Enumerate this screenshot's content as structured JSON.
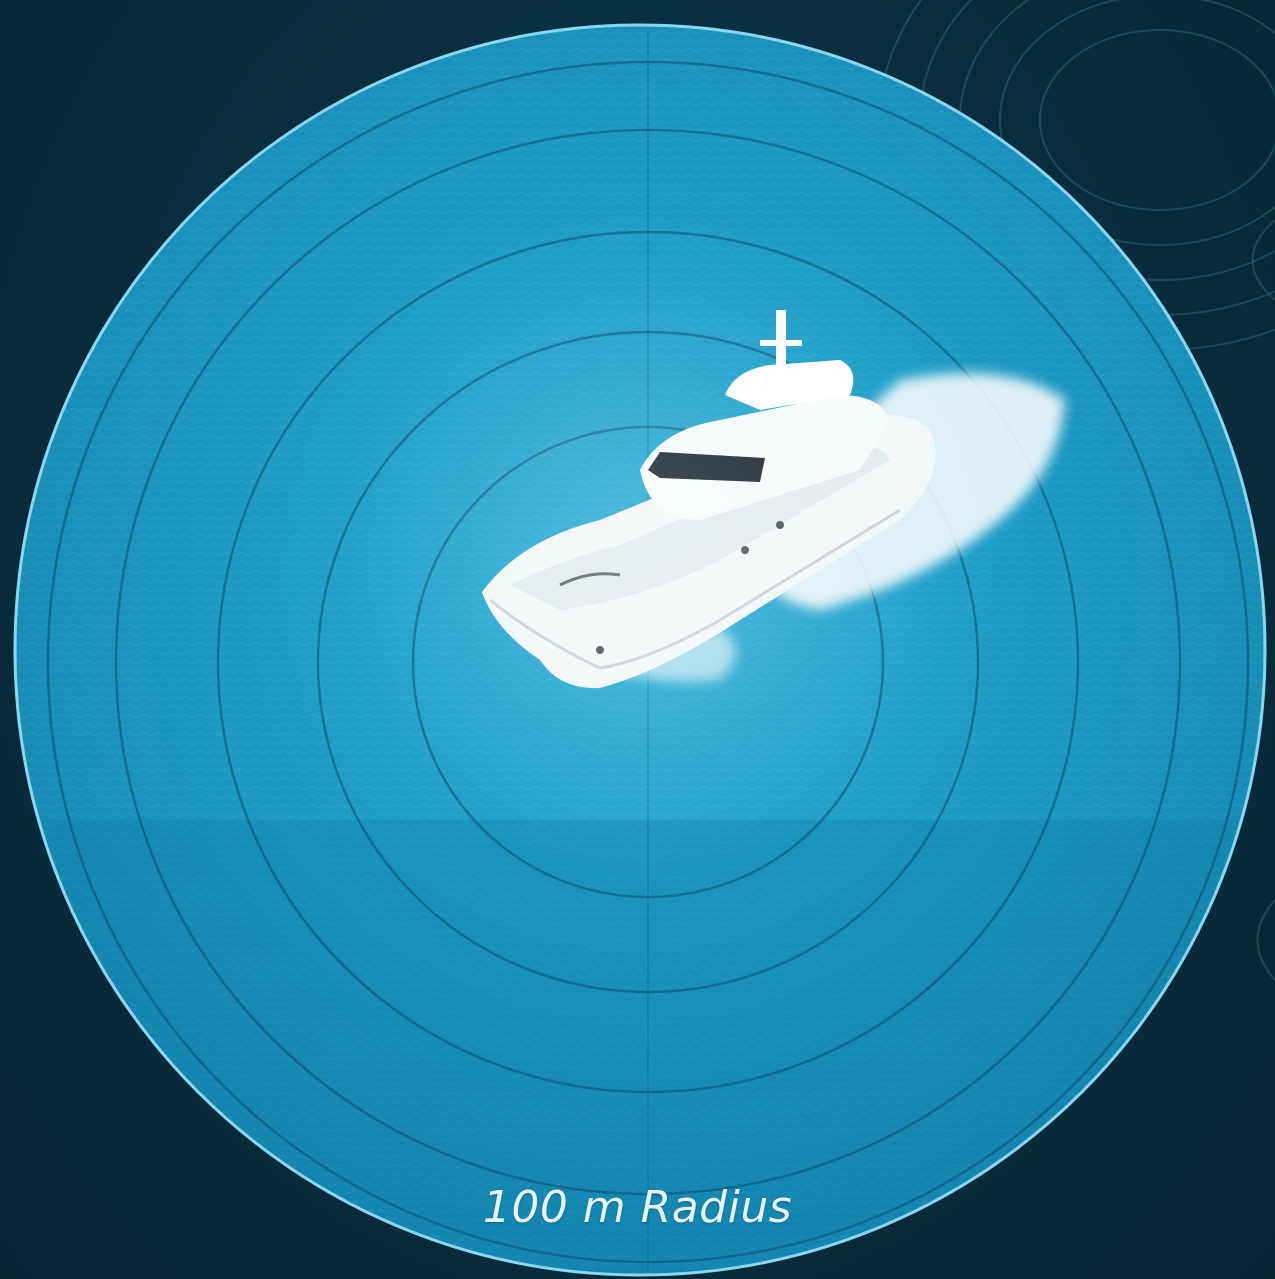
{
  "caption": {
    "text": "100 m Radius"
  },
  "colors": {
    "background": "#0a2f41",
    "water": "#1f9cc6",
    "ring_outline": "#8ad7f0",
    "boat": "#f4f8f8",
    "caption": "#e6f3f8"
  },
  "icons": {
    "boat": "yacht-icon"
  },
  "rings": {
    "count": 5
  }
}
